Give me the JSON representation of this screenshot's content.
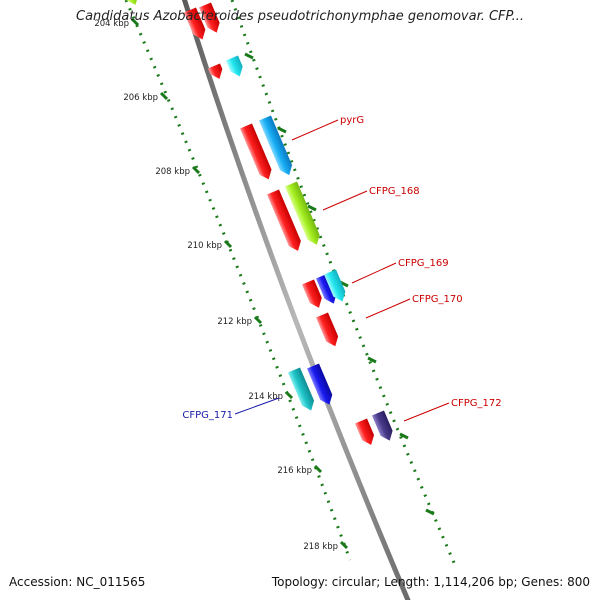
{
  "title": "Candidatus Azobacteroides pseudotrichonymphae genomovar. CFP...",
  "footer": {
    "accession": "Accession: NC_011565",
    "topology": "Topology: circular; Length: 1,114,206 bp; Genes: 800"
  },
  "ticks": [
    {
      "label": "204 kbp"
    },
    {
      "label": "206 kbp"
    },
    {
      "label": "208 kbp"
    },
    {
      "label": "210 kbp"
    },
    {
      "label": "212 kbp"
    },
    {
      "label": "214 kbp"
    },
    {
      "label": "216 kbp"
    },
    {
      "label": "218 kbp"
    }
  ],
  "gene_labels": [
    {
      "text": "pyrG",
      "color": "#cc0000"
    },
    {
      "text": "CFPG_168",
      "color": "#cc0000"
    },
    {
      "text": "CFPG_169",
      "color": "#cc0000"
    },
    {
      "text": "CFPG_170",
      "color": "#cc0000"
    },
    {
      "text": "CFPG_171",
      "color": "#1a1aaa"
    },
    {
      "text": "CFPG_172",
      "color": "#cc0000"
    }
  ],
  "colors": {
    "backbone": "#8a8a8a",
    "tick": "#1a7a1a",
    "red": "#ff1a1a",
    "sky": "#1ab0ff",
    "cyan": "#22e8ee",
    "lime": "#a6ee22",
    "blue": "#1a1ae8",
    "teal": "#20c8c8",
    "purple": "#4a3a8a"
  }
}
